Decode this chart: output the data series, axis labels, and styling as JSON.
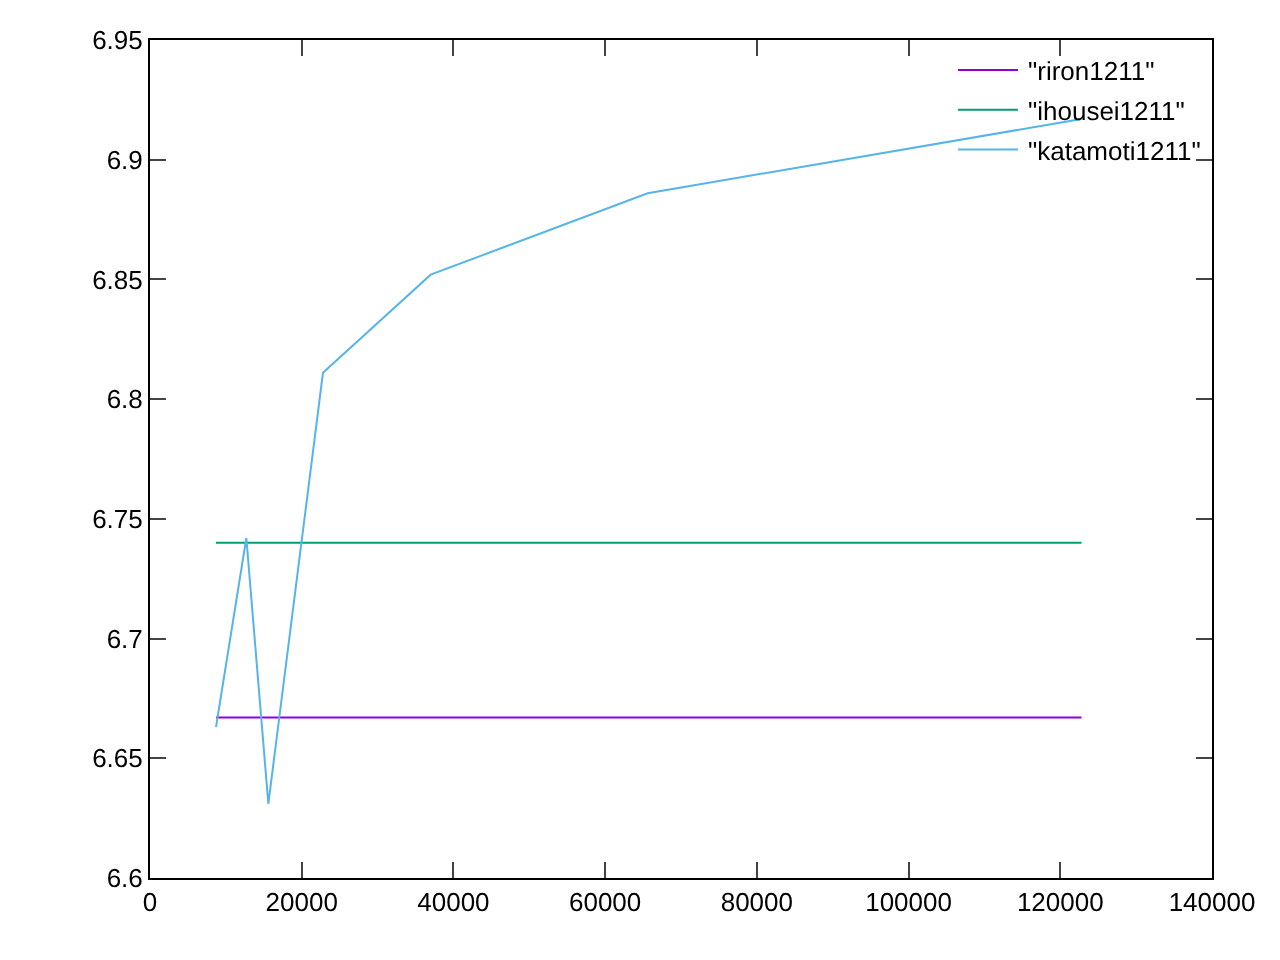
{
  "chart_data": {
    "type": "line",
    "xlim": [
      0,
      140000
    ],
    "ylim": [
      6.6,
      6.95
    ],
    "xticks": [
      0,
      20000,
      40000,
      60000,
      80000,
      100000,
      120000,
      140000
    ],
    "yticks": [
      6.6,
      6.65,
      6.7,
      6.75,
      6.8,
      6.85,
      6.9,
      6.95
    ],
    "grid": false,
    "legend": "top right",
    "marker": "none",
    "line_style": "solid",
    "series": [
      {
        "name": "\"riron1211\"",
        "color": "#9400d3",
        "x": [
          8700,
          122800
        ],
        "values": [
          6.667,
          6.667
        ]
      },
      {
        "name": "\"ihousei1211\"",
        "color": "#009e73",
        "x": [
          8700,
          122800
        ],
        "values": [
          6.74,
          6.74
        ]
      },
      {
        "name": "\"katamoti1211\"",
        "color": "#56b4e9",
        "x": [
          8700,
          12700,
          15600,
          22800,
          37000,
          65600,
          122800
        ],
        "values": [
          6.663,
          6.742,
          6.631,
          6.811,
          6.852,
          6.886,
          6.917
        ]
      }
    ]
  }
}
